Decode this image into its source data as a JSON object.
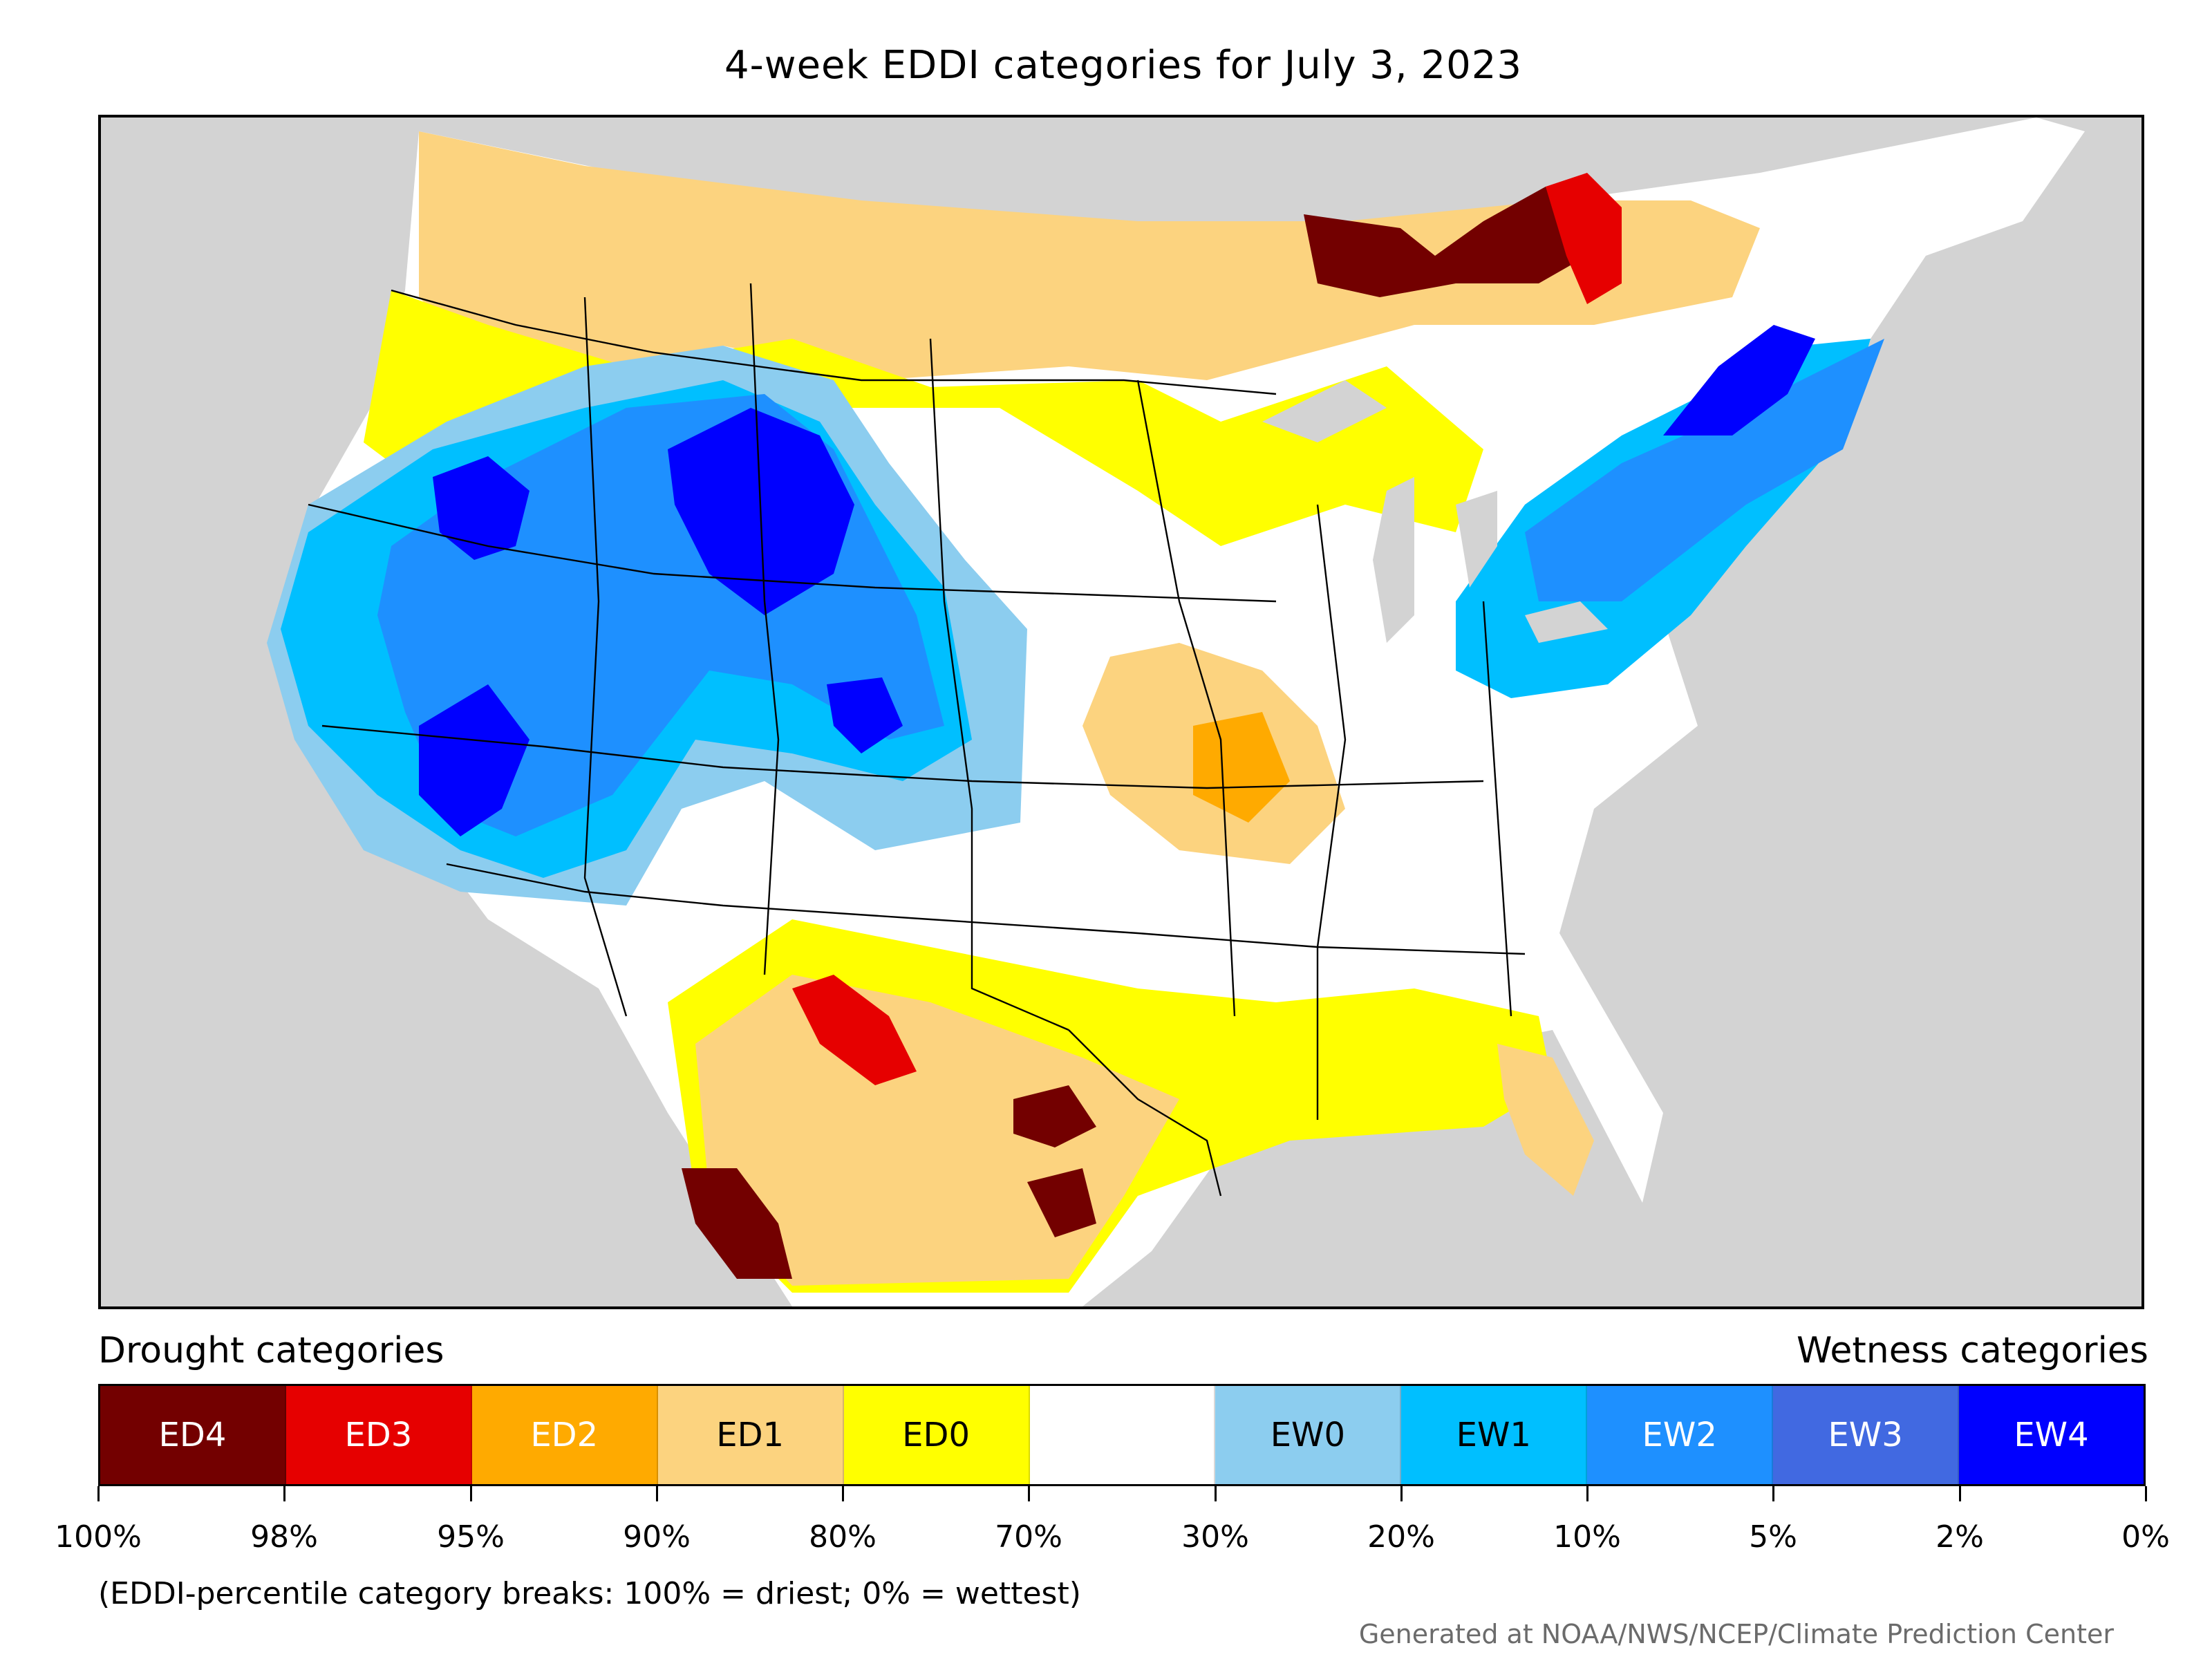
{
  "title": "4-week EDDI categories for July 3, 2023",
  "legend": {
    "drought_heading": "Drought categories",
    "wetness_heading": "Wetness categories",
    "categories": [
      {
        "label": "ED4",
        "color": "#730000",
        "text_color": "#ffffff"
      },
      {
        "label": "ED3",
        "color": "#e60000",
        "text_color": "#ffffff"
      },
      {
        "label": "ED2",
        "color": "#ffaa00",
        "text_color": "#ffffff"
      },
      {
        "label": "ED1",
        "color": "#fcd37f",
        "text_color": "#000000"
      },
      {
        "label": "ED0",
        "color": "#ffff00",
        "text_color": "#000000"
      },
      {
        "label": "",
        "color": "#ffffff",
        "text_color": "#000000"
      },
      {
        "label": "EW0",
        "color": "#8ccdef",
        "text_color": "#000000"
      },
      {
        "label": "EW1",
        "color": "#00bfff",
        "text_color": "#000000"
      },
      {
        "label": "EW2",
        "color": "#1e90ff",
        "text_color": "#ffffff"
      },
      {
        "label": "EW3",
        "color": "#4169e1",
        "text_color": "#ffffff"
      },
      {
        "label": "EW4",
        "color": "#0000ff",
        "text_color": "#ffffff"
      }
    ],
    "tick_labels": [
      "100%",
      "98%",
      "95%",
      "90%",
      "80%",
      "70%",
      "30%",
      "20%",
      "10%",
      "5%",
      "2%",
      "0%"
    ],
    "footnote": "(EDDI-percentile category breaks: 100% = driest; 0% = wettest)"
  },
  "credit": "Generated at NOAA/NWS/NCEP/Climate Prediction Center",
  "colors": {
    "land_outside": "#d3d3d3",
    "water": "#d3d3d3",
    "border": "#000000"
  }
}
